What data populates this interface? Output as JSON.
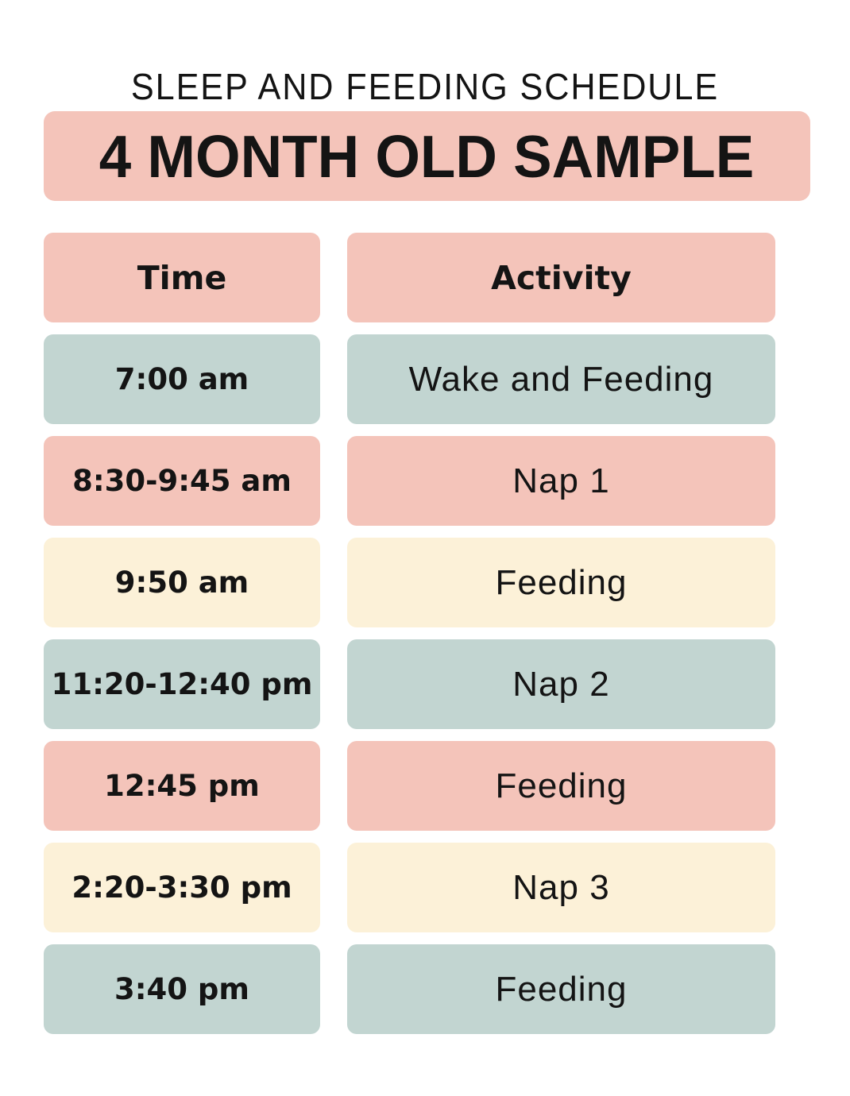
{
  "header": {
    "subtitle": "SLEEP AND FEEDING SCHEDULE",
    "title": "4 MONTH OLD SAMPLE"
  },
  "colors": {
    "pink": "#f4c4ba",
    "sage": "#c2d5d1",
    "cream": "#fcf1d8",
    "text": "#141414",
    "background": "#ffffff"
  },
  "table": {
    "headers": [
      {
        "label": "Time",
        "color": "pink"
      },
      {
        "label": "Activity",
        "color": "pink"
      }
    ],
    "rows": [
      {
        "time": "7:00 am",
        "activity": "Wake and Feeding",
        "color": "sage"
      },
      {
        "time": "8:30-9:45 am",
        "activity": "Nap 1",
        "color": "pink"
      },
      {
        "time": "9:50 am",
        "activity": "Feeding",
        "color": "cream"
      },
      {
        "time": "11:20-12:40 pm",
        "activity": "Nap 2",
        "color": "sage"
      },
      {
        "time": "12:45 pm",
        "activity": "Feeding",
        "color": "pink"
      },
      {
        "time": "2:20-3:30 pm",
        "activity": "Nap 3",
        "color": "cream"
      },
      {
        "time": "3:40 pm",
        "activity": "Feeding",
        "color": "sage"
      }
    ]
  }
}
